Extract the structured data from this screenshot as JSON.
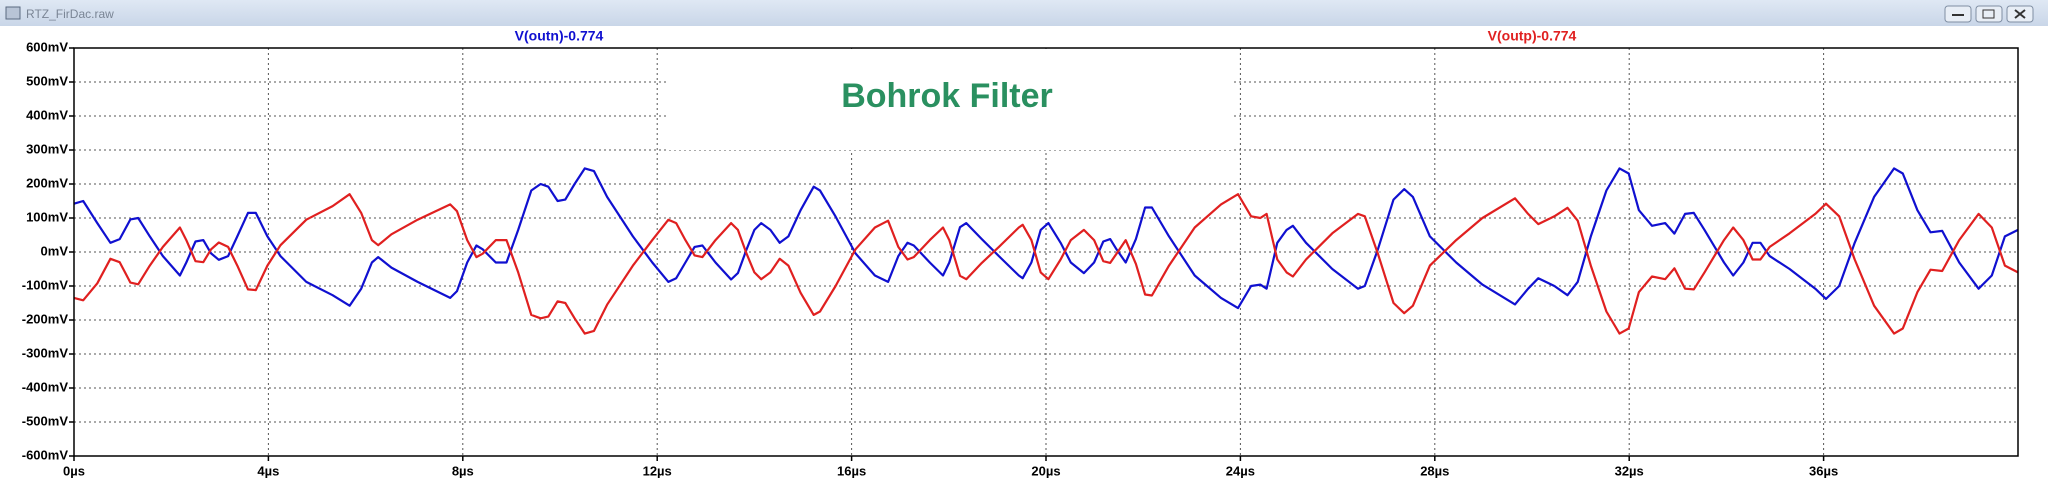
{
  "window_title": "RTZ_FirDac.raw",
  "chart_data": {
    "type": "line",
    "annotation": "Bohrok Filter",
    "xlim": [
      0,
      40
    ],
    "ylim": [
      -600,
      600
    ],
    "grid": true,
    "xticks": [
      {
        "value": 0,
        "label": "0µs"
      },
      {
        "value": 4,
        "label": "4µs"
      },
      {
        "value": 8,
        "label": "8µs"
      },
      {
        "value": 12,
        "label": "12µs"
      },
      {
        "value": 16,
        "label": "16µs"
      },
      {
        "value": 20,
        "label": "20µs"
      },
      {
        "value": 24,
        "label": "24µs"
      },
      {
        "value": 28,
        "label": "28µs"
      },
      {
        "value": 32,
        "label": "32µs"
      },
      {
        "value": 36,
        "label": "36µs"
      }
    ],
    "yticks": [
      {
        "value": 600,
        "label": "600mV"
      },
      {
        "value": 500,
        "label": "500mV"
      },
      {
        "value": 400,
        "label": "400mV"
      },
      {
        "value": 300,
        "label": "300mV"
      },
      {
        "value": 200,
        "label": "200mV"
      },
      {
        "value": 100,
        "label": "100mV"
      },
      {
        "value": 0,
        "label": "0mV"
      },
      {
        "value": -100,
        "label": "-100mV"
      },
      {
        "value": -200,
        "label": "-200mV"
      },
      {
        "value": -300,
        "label": "-300mV"
      },
      {
        "value": -400,
        "label": "-400mV"
      },
      {
        "value": -500,
        "label": "-500mV"
      },
      {
        "value": -600,
        "label": "-600mV"
      }
    ],
    "x": [
      0,
      0.19,
      0.48,
      0.75,
      0.94,
      1.16,
      1.32,
      1.56,
      1.83,
      2.18,
      2.31,
      2.5,
      2.66,
      2.82,
      2.98,
      3.17,
      3.36,
      3.58,
      3.74,
      3.98,
      4.25,
      4.78,
      5.32,
      5.67,
      5.91,
      6.13,
      6.26,
      6.53,
      7.07,
      7.74,
      7.88,
      8.09,
      8.28,
      8.41,
      8.68,
      8.9,
      9.14,
      9.41,
      9.6,
      9.76,
      9.95,
      10.11,
      10.3,
      10.51,
      10.7,
      10.97,
      11.5,
      11.9,
      12.23,
      12.39,
      12.58,
      12.77,
      12.93,
      13.2,
      13.52,
      13.66,
      13.84,
      14.0,
      14.14,
      14.33,
      14.52,
      14.7,
      14.95,
      15.22,
      15.35,
      15.67,
      16.08,
      16.48,
      16.75,
      16.96,
      17.15,
      17.28,
      17.61,
      17.88,
      18.01,
      18.23,
      18.36,
      18.68,
      19.03,
      19.44,
      19.52,
      19.7,
      19.89,
      20.05,
      20.3,
      20.51,
      20.78,
      20.99,
      21.18,
      21.32,
      21.45,
      21.64,
      21.85,
      22.04,
      22.18,
      22.53,
      23.06,
      23.6,
      23.95,
      24.22,
      24.41,
      24.54,
      24.76,
      24.95,
      25.08,
      25.35,
      25.89,
      26.42,
      26.56,
      26.83,
      27.15,
      27.37,
      27.55,
      27.9,
      28.44,
      28.98,
      29.65,
      29.92,
      30.13,
      30.46,
      30.73,
      30.94,
      31.21,
      31.53,
      31.8,
      31.99,
      32.2,
      32.47,
      32.74,
      32.93,
      33.15,
      33.33,
      33.55,
      33.95,
      34.14,
      34.35,
      34.54,
      34.7,
      34.89,
      35.3,
      35.83,
      36.05,
      36.32,
      36.64,
      37.04,
      37.45,
      37.63,
      37.93,
      38.2,
      38.44,
      38.79,
      39.19,
      39.46,
      39.73,
      40.0
    ],
    "series": [
      {
        "name": "V(outn)-0.774",
        "color": "#1010d0",
        "values": [
          142,
          150,
          85,
          27,
          38,
          96,
          100,
          46,
          -12,
          -69,
          -31,
          31,
          35,
          -4,
          -23,
          -12,
          46,
          115,
          115,
          46,
          -12,
          -88,
          -127,
          -158,
          -108,
          -31,
          -15,
          -46,
          -88,
          -135,
          -115,
          -31,
          19,
          8,
          -31,
          -31,
          65,
          181,
          200,
          192,
          150,
          154,
          200,
          246,
          238,
          162,
          46,
          -31,
          -88,
          -77,
          -31,
          15,
          19,
          -31,
          -81,
          -62,
          8,
          65,
          85,
          65,
          27,
          46,
          123,
          192,
          181,
          104,
          -4,
          -69,
          -88,
          -12,
          27,
          19,
          -31,
          -69,
          -31,
          73,
          85,
          38,
          -12,
          -69,
          -77,
          -31,
          65,
          85,
          27,
          -31,
          -62,
          -31,
          31,
          38,
          8,
          -31,
          38,
          131,
          131,
          46,
          -69,
          -135,
          -165,
          -100,
          -96,
          -108,
          27,
          65,
          77,
          27,
          -50,
          -108,
          -100,
          8,
          154,
          185,
          162,
          46,
          -31,
          -96,
          -154,
          -108,
          -77,
          -100,
          -127,
          -88,
          46,
          181,
          246,
          231,
          123,
          77,
          85,
          54,
          112,
          115,
          65,
          -31,
          -69,
          -31,
          27,
          27,
          -12,
          -50,
          -108,
          -138,
          -100,
          27,
          162,
          246,
          231,
          123,
          58,
          62,
          -31,
          -108,
          -69,
          46,
          65
        ]
      },
      {
        "name": "V(outp)-0.774",
        "color": "#e02020",
        "values": [
          -135,
          -142,
          -92,
          -20,
          -30,
          -90,
          -95,
          -40,
          15,
          72,
          35,
          -27,
          -30,
          8,
          28,
          15,
          -40,
          -110,
          -112,
          -40,
          20,
          95,
          135,
          170,
          115,
          35,
          20,
          52,
          95,
          140,
          120,
          35,
          -15,
          -5,
          35,
          35,
          -60,
          -185,
          -195,
          -190,
          -145,
          -150,
          -195,
          -240,
          -232,
          -155,
          -40,
          35,
          95,
          85,
          35,
          -10,
          -15,
          35,
          85,
          65,
          -5,
          -60,
          -80,
          -60,
          -20,
          -40,
          -120,
          -185,
          -175,
          -100,
          8,
          72,
          92,
          15,
          -22,
          -15,
          35,
          72,
          35,
          -70,
          -80,
          -32,
          15,
          72,
          80,
          35,
          -60,
          -80,
          -22,
          35,
          65,
          35,
          -27,
          -32,
          -5,
          35,
          -35,
          -125,
          -128,
          -40,
          72,
          140,
          170,
          105,
          100,
          112,
          -22,
          -60,
          -72,
          -22,
          55,
          112,
          105,
          -5,
          -150,
          -180,
          -158,
          -40,
          35,
          100,
          158,
          112,
          82,
          105,
          130,
          92,
          -40,
          -175,
          -240,
          -225,
          -118,
          -72,
          -80,
          -48,
          -108,
          -110,
          -60,
          35,
          72,
          35,
          -22,
          -22,
          15,
          55,
          112,
          142,
          105,
          -22,
          -158,
          -240,
          -225,
          -118,
          -52,
          -56,
          35,
          112,
          72,
          -40,
          -60
        ]
      }
    ]
  }
}
